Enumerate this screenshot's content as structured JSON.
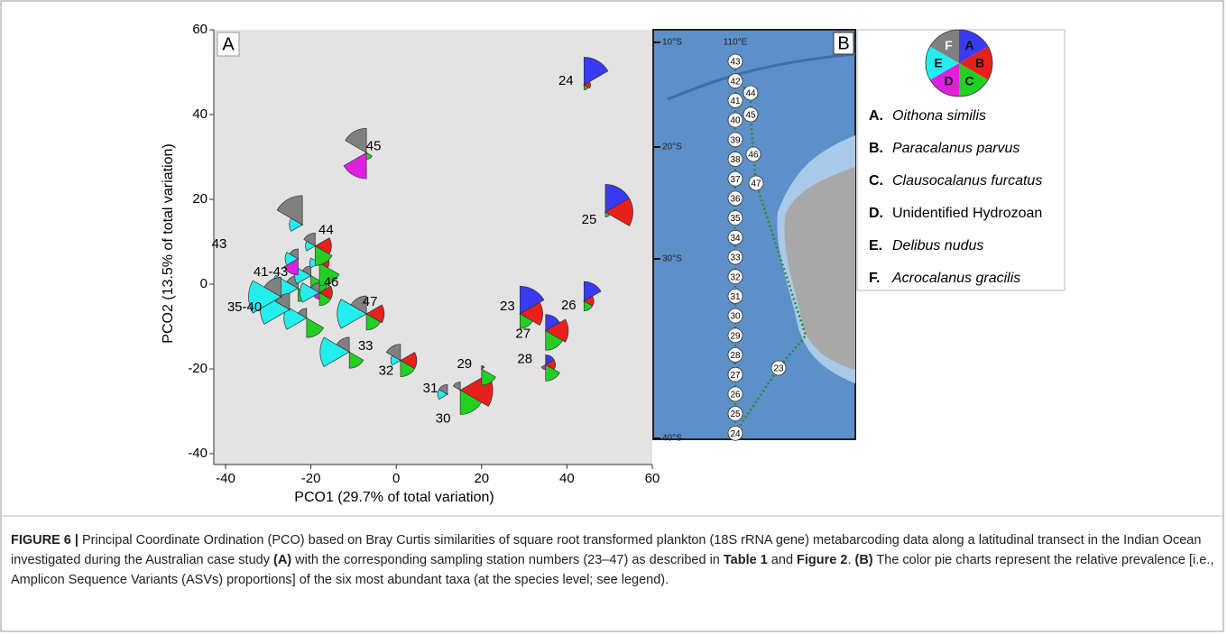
{
  "chart_data": {
    "type": "scatter",
    "panel_label": "A",
    "x_label": "PCO1 (29.7% of total variation)",
    "y_label": "PCO2 (13.5% of total variation)",
    "xlim": [
      -40,
      60
    ],
    "ylim": [
      -40,
      60
    ],
    "xticks": [
      -40,
      -20,
      0,
      20,
      40,
      60
    ],
    "yticks": [
      -40,
      -20,
      0,
      20,
      40,
      60
    ],
    "background": "#e3e3e3",
    "points": [
      {
        "label": "24",
        "x": 44,
        "y": 47,
        "wedges": [
          0.85,
          0.2,
          0.15,
          0,
          0,
          0
        ]
      },
      {
        "label": "45",
        "x": -7,
        "y": 31,
        "wedges": [
          0,
          0,
          0.2,
          0.8,
          0,
          0.75
        ]
      },
      {
        "label": "25",
        "x": 49,
        "y": 17,
        "wedges": [
          0.85,
          0.85,
          0.15,
          0,
          0,
          0
        ]
      },
      {
        "label": "44",
        "x": -19,
        "y": 9,
        "wedges": [
          0,
          0.5,
          0.6,
          0,
          0.3,
          0.4
        ]
      },
      {
        "label": "46",
        "x": -18,
        "y": -2,
        "wedges": [
          0,
          0.4,
          0.4,
          0.2,
          0.6,
          0.3
        ]
      },
      {
        "label": "47",
        "x": -7,
        "y": -7,
        "wedges": [
          0,
          0.55,
          0.5,
          0,
          0.9,
          0.55
        ]
      },
      {
        "label": "33",
        "x": -11,
        "y": -16,
        "wedges": [
          0,
          0,
          0.5,
          0,
          0.9,
          0.45
        ]
      },
      {
        "label": "32",
        "x": 1,
        "y": -18,
        "wedges": [
          0,
          0.5,
          0.5,
          0,
          0.3,
          0.5
        ]
      },
      {
        "label": "23",
        "x": 29,
        "y": -7,
        "wedges": [
          0.85,
          0.7,
          0.45,
          0,
          0,
          0
        ]
      },
      {
        "label": "26",
        "x": 44,
        "y": -4,
        "wedges": [
          0.6,
          0.3,
          0.3,
          0,
          0,
          0
        ]
      },
      {
        "label": "27",
        "x": 35,
        "y": -11,
        "wedges": [
          0.5,
          0.7,
          0.6,
          0,
          0,
          0
        ]
      },
      {
        "label": "28",
        "x": 35,
        "y": -19,
        "wedges": [
          0.3,
          0.3,
          0.5,
          0.15,
          0,
          0
        ]
      },
      {
        "label": "29",
        "x": 20,
        "y": -20,
        "wedges": [
          0.1,
          0,
          0.5,
          0,
          0,
          0
        ]
      },
      {
        "label": "31",
        "x": 12,
        "y": -26,
        "wedges": [
          0,
          0,
          0,
          0,
          0.3,
          0.3
        ]
      },
      {
        "label": "30",
        "x": 15,
        "y": -25,
        "wedges": [
          0,
          1,
          0.75,
          0,
          0,
          0.25
        ]
      },
      {
        "label": null,
        "x": -22,
        "y": 14,
        "wedges": [
          0,
          0,
          0,
          0,
          0.4,
          0.9
        ]
      },
      {
        "label": null,
        "x": -23,
        "y": 6,
        "wedges": [
          0,
          0,
          0,
          0.5,
          0.4,
          0.3
        ]
      },
      {
        "label": null,
        "x": -18,
        "y": 5,
        "wedges": [
          0,
          0.3,
          0.7,
          0,
          0.3,
          0
        ]
      },
      {
        "label": null,
        "x": -20,
        "y": 2,
        "wedges": [
          0,
          0,
          0.6,
          0,
          0.5,
          0.3
        ]
      },
      {
        "label": null,
        "x": -27,
        "y": -3,
        "wedges": [
          0,
          0,
          0,
          0,
          1,
          0.6
        ]
      },
      {
        "label": null,
        "x": -25,
        "y": -6,
        "wedges": [
          0,
          0,
          0,
          0,
          0.9,
          0.5
        ]
      },
      {
        "label": null,
        "x": -21,
        "y": -8,
        "wedges": [
          0,
          0,
          0.6,
          0,
          0.7,
          0.3
        ]
      },
      {
        "label": null,
        "x": -23,
        "y": -1,
        "wedges": [
          0,
          0,
          0.4,
          0,
          0.8,
          0.4
        ]
      }
    ],
    "annotations": [
      "43",
      "41-43",
      "35-40"
    ],
    "legend": [
      {
        "letter": "A",
        "heading": "A.",
        "name": "Oithona similis",
        "italic": true,
        "color": "#3a3af2"
      },
      {
        "letter": "B",
        "heading": "B.",
        "name": "Paracalanus parvus",
        "italic": true,
        "color": "#e8201c"
      },
      {
        "letter": "C",
        "heading": "C.",
        "name": "Clausocalanus furcatus",
        "italic": true,
        "color": "#22d022"
      },
      {
        "letter": "D",
        "heading": "D.",
        "name": "Unidentified Hydrozoan",
        "italic": false,
        "color": "#e020e0"
      },
      {
        "letter": "E",
        "heading": "E.",
        "name": "Delibus nudus",
        "italic": true,
        "color": "#22eeee"
      },
      {
        "letter": "F",
        "heading": "F.",
        "name": "Acrocalanus gracilis",
        "italic": true,
        "color": "#808080"
      }
    ]
  },
  "map": {
    "panel_label": "B",
    "lon_label": "110°E",
    "lat_labels": [
      "10°S",
      "20°S",
      "30°S",
      "40°S"
    ],
    "stations": [
      "43",
      "42",
      "41",
      "40",
      "39",
      "38",
      "37",
      "36",
      "35",
      "34",
      "33",
      "32",
      "31",
      "30",
      "29",
      "28",
      "27",
      "26",
      "25",
      "24",
      "44",
      "45",
      "46",
      "47",
      "23"
    ]
  },
  "caption": [
    {
      "text": "FIGURE 6 |",
      "bold": true
    },
    {
      "text": " Principal Coordinate Ordination (PCO) based on Bray Curtis similarities of square root transformed plankton (18S rRNA gene) metabarcoding data along a latitudinal transect in the Indian Ocean investigated during the Australian case study ",
      "bold": false
    },
    {
      "text": "(A)",
      "bold": true
    },
    {
      "text": " with the corresponding sampling station numbers (23–47) as described in ",
      "bold": false
    },
    {
      "text": "Table 1",
      "bold": true
    },
    {
      "text": " and ",
      "bold": false
    },
    {
      "text": "Figure 2",
      "bold": true
    },
    {
      "text": ". ",
      "bold": false
    },
    {
      "text": "(B)",
      "bold": true
    },
    {
      "text": " The color pie charts represent the relative prevalence [i.e., Amplicon Sequence Variants (ASVs) proportions] of the six most abundant taxa (at the species level; see legend).",
      "bold": false
    }
  ]
}
